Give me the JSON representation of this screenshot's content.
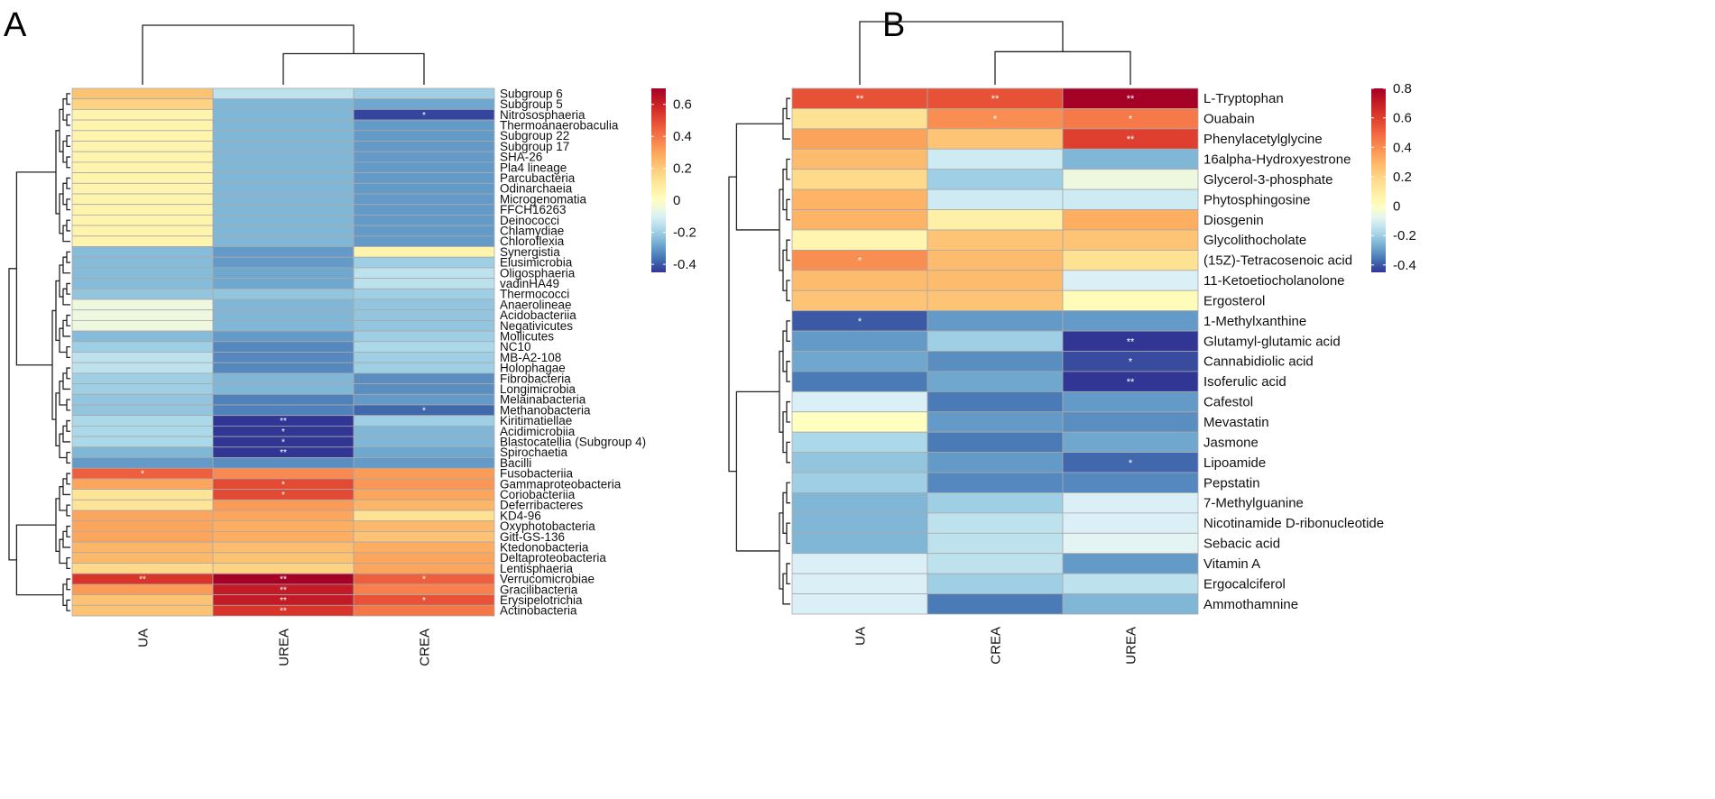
{
  "colors": {
    "scale": [
      "#313695",
      "#4575b4",
      "#74add1",
      "#abd9e9",
      "#e0f3f8",
      "#ffffbf",
      "#fee090",
      "#fdae61",
      "#f46d43",
      "#d73027",
      "#a50026"
    ],
    "cell_border": "#a9a9a9",
    "tree": "#222222",
    "star": "#ffffff"
  },
  "chart_data": [
    {
      "type": "heatmap",
      "panel_label": "A",
      "columns": [
        "UA",
        "UREA",
        "CREA"
      ],
      "rows": [
        "Subgroup 6",
        "Subgroup 5",
        "Nitrososphaeria",
        "Thermoanaerobaculia",
        "Subgroup 22",
        "Subgroup 17",
        "SHA-26",
        "Pla4 lineage",
        "Parcubacteria",
        "Odinarchaeia",
        "Microgenomatia",
        "FFCH16263",
        "Deinococci",
        "Chlamydiae",
        "Chloroflexia",
        "Synergistia",
        "Elusimicrobia",
        "Oligosphaeria",
        "vadinHA49",
        "Thermococci",
        "Anaerolineae",
        "Acidobacteriia",
        "Negativicutes",
        "Mollicutes",
        "NC10",
        "MB-A2-108",
        "Holophagae",
        "Fibrobacteria",
        "Longimicrobia",
        "Melainabacteria",
        "Methanobacteria",
        "Kiritimatiellae",
        "Acidimicrobiia",
        "Blastocatellia (Subgroup 4)",
        "Spirochaetia",
        "Bacilli",
        "Fusobacteriia",
        "Gammaproteobacteria",
        "Coriobacteriia",
        "Deferribacteres",
        "KD4-96",
        "Oxyphotobacteria",
        "Gitt-GS-136",
        "Ktedonobacteria",
        "Deltaproteobacteria",
        "Lentisphaeria",
        "Verrucomicrobiae",
        "Gracilibacteria",
        "Erysipelotrichia",
        "Actinobacteria"
      ],
      "values": [
        [
          0.22,
          -0.15,
          -0.2
        ],
        [
          0.18,
          -0.25,
          -0.28
        ],
        [
          0.05,
          -0.25,
          -0.43
        ],
        [
          0.05,
          -0.25,
          -0.3
        ],
        [
          0.05,
          -0.25,
          -0.3
        ],
        [
          0.05,
          -0.25,
          -0.3
        ],
        [
          0.05,
          -0.25,
          -0.3
        ],
        [
          0.05,
          -0.25,
          -0.3
        ],
        [
          0.05,
          -0.25,
          -0.3
        ],
        [
          0.05,
          -0.25,
          -0.3
        ],
        [
          0.05,
          -0.25,
          -0.3
        ],
        [
          0.05,
          -0.25,
          -0.3
        ],
        [
          0.05,
          -0.25,
          -0.3
        ],
        [
          0.05,
          -0.25,
          -0.3
        ],
        [
          0.05,
          -0.25,
          -0.3
        ],
        [
          -0.24,
          -0.3,
          0.05
        ],
        [
          -0.24,
          -0.3,
          -0.2
        ],
        [
          -0.24,
          -0.28,
          -0.15
        ],
        [
          -0.24,
          -0.28,
          -0.15
        ],
        [
          -0.22,
          -0.22,
          -0.2
        ],
        [
          -0.05,
          -0.25,
          -0.22
        ],
        [
          -0.05,
          -0.25,
          -0.22
        ],
        [
          -0.05,
          -0.25,
          -0.22
        ],
        [
          -0.24,
          -0.3,
          -0.2
        ],
        [
          -0.2,
          -0.33,
          -0.18
        ],
        [
          -0.15,
          -0.33,
          -0.2
        ],
        [
          -0.15,
          -0.33,
          -0.2
        ],
        [
          -0.2,
          -0.25,
          -0.32
        ],
        [
          -0.2,
          -0.25,
          -0.32
        ],
        [
          -0.22,
          -0.34,
          -0.3
        ],
        [
          -0.22,
          -0.34,
          -0.38
        ],
        [
          -0.18,
          -0.5,
          -0.2
        ],
        [
          -0.18,
          -0.46,
          -0.25
        ],
        [
          -0.18,
          -0.46,
          -0.25
        ],
        [
          -0.25,
          -0.5,
          -0.28
        ],
        [
          -0.3,
          -0.32,
          -0.3
        ],
        [
          0.45,
          0.36,
          0.32
        ],
        [
          0.3,
          0.5,
          0.33
        ],
        [
          0.12,
          0.5,
          0.3
        ],
        [
          0.12,
          0.32,
          0.26
        ],
        [
          0.3,
          0.3,
          0.13
        ],
        [
          0.3,
          0.28,
          0.25
        ],
        [
          0.3,
          0.28,
          0.22
        ],
        [
          0.26,
          0.24,
          0.28
        ],
        [
          0.25,
          0.22,
          0.3
        ],
        [
          0.16,
          0.18,
          0.3
        ],
        [
          0.55,
          0.7,
          0.45
        ],
        [
          0.32,
          0.62,
          0.38
        ],
        [
          0.22,
          0.62,
          0.48
        ],
        [
          0.22,
          0.55,
          0.4
        ]
      ],
      "stars": [
        [
          "",
          "",
          ""
        ],
        [
          "",
          "",
          ""
        ],
        [
          "",
          "",
          "*"
        ],
        [
          "",
          "",
          ""
        ],
        [
          "",
          "",
          ""
        ],
        [
          "",
          "",
          ""
        ],
        [
          "",
          "",
          ""
        ],
        [
          "",
          "",
          ""
        ],
        [
          "",
          "",
          ""
        ],
        [
          "",
          "",
          ""
        ],
        [
          "",
          "",
          ""
        ],
        [
          "",
          "",
          ""
        ],
        [
          "",
          "",
          ""
        ],
        [
          "",
          "",
          ""
        ],
        [
          "",
          "",
          ""
        ],
        [
          "",
          "",
          ""
        ],
        [
          "",
          "",
          ""
        ],
        [
          "",
          "",
          ""
        ],
        [
          "",
          "",
          ""
        ],
        [
          "",
          "",
          ""
        ],
        [
          "",
          "",
          ""
        ],
        [
          "",
          "",
          ""
        ],
        [
          "",
          "",
          ""
        ],
        [
          "",
          "",
          ""
        ],
        [
          "",
          "",
          ""
        ],
        [
          "",
          "",
          ""
        ],
        [
          "",
          "",
          ""
        ],
        [
          "",
          "",
          ""
        ],
        [
          "",
          "",
          ""
        ],
        [
          "",
          "",
          ""
        ],
        [
          "",
          "",
          "*"
        ],
        [
          "",
          "**",
          ""
        ],
        [
          "",
          "*",
          ""
        ],
        [
          "",
          "*",
          ""
        ],
        [
          "",
          "**",
          ""
        ],
        [
          "",
          "",
          ""
        ],
        [
          "*",
          "",
          ""
        ],
        [
          "",
          "*",
          ""
        ],
        [
          "",
          "*",
          ""
        ],
        [
          "",
          "",
          ""
        ],
        [
          "",
          "",
          ""
        ],
        [
          "",
          "",
          ""
        ],
        [
          "",
          "",
          ""
        ],
        [
          "",
          "",
          ""
        ],
        [
          "",
          "",
          ""
        ],
        [
          "",
          "",
          ""
        ],
        [
          "**",
          "**",
          "*"
        ],
        [
          "",
          "**",
          ""
        ],
        [
          "",
          "**",
          "*"
        ],
        [
          "",
          "**",
          ""
        ]
      ],
      "color_range": [
        -0.45,
        0.7
      ],
      "legend_ticks": [
        0.6,
        0.4,
        0.2,
        0,
        -0.2,
        -0.4
      ],
      "legend_labels": [
        "0.6",
        "0.4",
        "0.2",
        "0",
        "-0.2",
        "-0.4"
      ]
    },
    {
      "type": "heatmap",
      "panel_label": "B",
      "columns": [
        "UA",
        "CREA",
        "UREA"
      ],
      "rows": [
        "L-Tryptophan",
        "Ouabain",
        "Phenylacetylglycine",
        "16alpha-Hydroxyestrone",
        "Glycerol-3-phosphate",
        "Phytosphingosine",
        "Diosgenin",
        "Glycolithocholate",
        "(15Z)-Tetracosenoic acid",
        "11-Ketoetiocholanolone",
        "Ergosterol",
        "1-Methylxanthine",
        "Glutamyl-glutamic acid",
        "Cannabidiolic acid",
        "Isoferulic acid",
        "Cafestol",
        "Mevastatin",
        "Jasmone",
        "Lipoamide",
        "Pepstatin",
        "7-Methylguanine",
        "Nicotinamide D-ribonucleotide",
        "Sebacic acid",
        "Vitamin A",
        "Ergocalciferol",
        "Ammothamnine"
      ],
      "values": [
        [
          0.55,
          0.55,
          0.8
        ],
        [
          0.15,
          0.4,
          0.45
        ],
        [
          0.35,
          0.25,
          0.6
        ],
        [
          0.28,
          -0.12,
          -0.25
        ],
        [
          0.18,
          -0.2,
          -0.05
        ],
        [
          0.3,
          -0.12,
          -0.12
        ],
        [
          0.3,
          0.08,
          0.32
        ],
        [
          0.05,
          0.25,
          0.25
        ],
        [
          0.4,
          0.28,
          0.15
        ],
        [
          0.28,
          0.28,
          -0.1
        ],
        [
          0.25,
          0.25,
          0.02
        ],
        [
          -0.4,
          -0.3,
          -0.3
        ],
        [
          -0.3,
          -0.2,
          -0.45
        ],
        [
          -0.28,
          -0.32,
          -0.42
        ],
        [
          -0.35,
          -0.28,
          -0.45
        ],
        [
          -0.1,
          -0.35,
          -0.3
        ],
        [
          0.0,
          -0.3,
          -0.32
        ],
        [
          -0.18,
          -0.35,
          -0.28
        ],
        [
          -0.22,
          -0.3,
          -0.38
        ],
        [
          -0.2,
          -0.33,
          -0.33
        ],
        [
          -0.25,
          -0.2,
          -0.1
        ],
        [
          -0.25,
          -0.15,
          -0.1
        ],
        [
          -0.25,
          -0.15,
          -0.08
        ],
        [
          -0.1,
          -0.15,
          -0.3
        ],
        [
          -0.1,
          -0.2,
          -0.15
        ],
        [
          -0.1,
          -0.35,
          -0.25
        ]
      ],
      "stars": [
        [
          "**",
          "**",
          "**"
        ],
        [
          "",
          "*",
          "*"
        ],
        [
          "",
          "",
          "**"
        ],
        [
          "",
          "",
          ""
        ],
        [
          "",
          "",
          ""
        ],
        [
          "",
          "",
          ""
        ],
        [
          "",
          "",
          ""
        ],
        [
          "",
          "",
          ""
        ],
        [
          "*",
          "",
          ""
        ],
        [
          "",
          "",
          ""
        ],
        [
          "",
          "",
          ""
        ],
        [
          "*",
          "",
          ""
        ],
        [
          "",
          "",
          "**"
        ],
        [
          "",
          "",
          "*"
        ],
        [
          "",
          "",
          "**"
        ],
        [
          "",
          "",
          ""
        ],
        [
          "",
          "",
          ""
        ],
        [
          "",
          "",
          ""
        ],
        [
          "",
          "",
          "*"
        ],
        [
          "",
          "",
          ""
        ],
        [
          "",
          "",
          ""
        ],
        [
          "",
          "",
          ""
        ],
        [
          "",
          "",
          ""
        ],
        [
          "",
          "",
          ""
        ],
        [
          "",
          "",
          ""
        ],
        [
          "",
          "",
          ""
        ]
      ],
      "color_range": [
        -0.45,
        0.8
      ],
      "legend_ticks": [
        0.8,
        0.6,
        0.4,
        0.2,
        0,
        -0.2,
        -0.4
      ],
      "legend_labels": [
        "0.8",
        "0.6",
        "0.4",
        "0.2",
        "0",
        "-0.2",
        "-0.4"
      ]
    }
  ]
}
